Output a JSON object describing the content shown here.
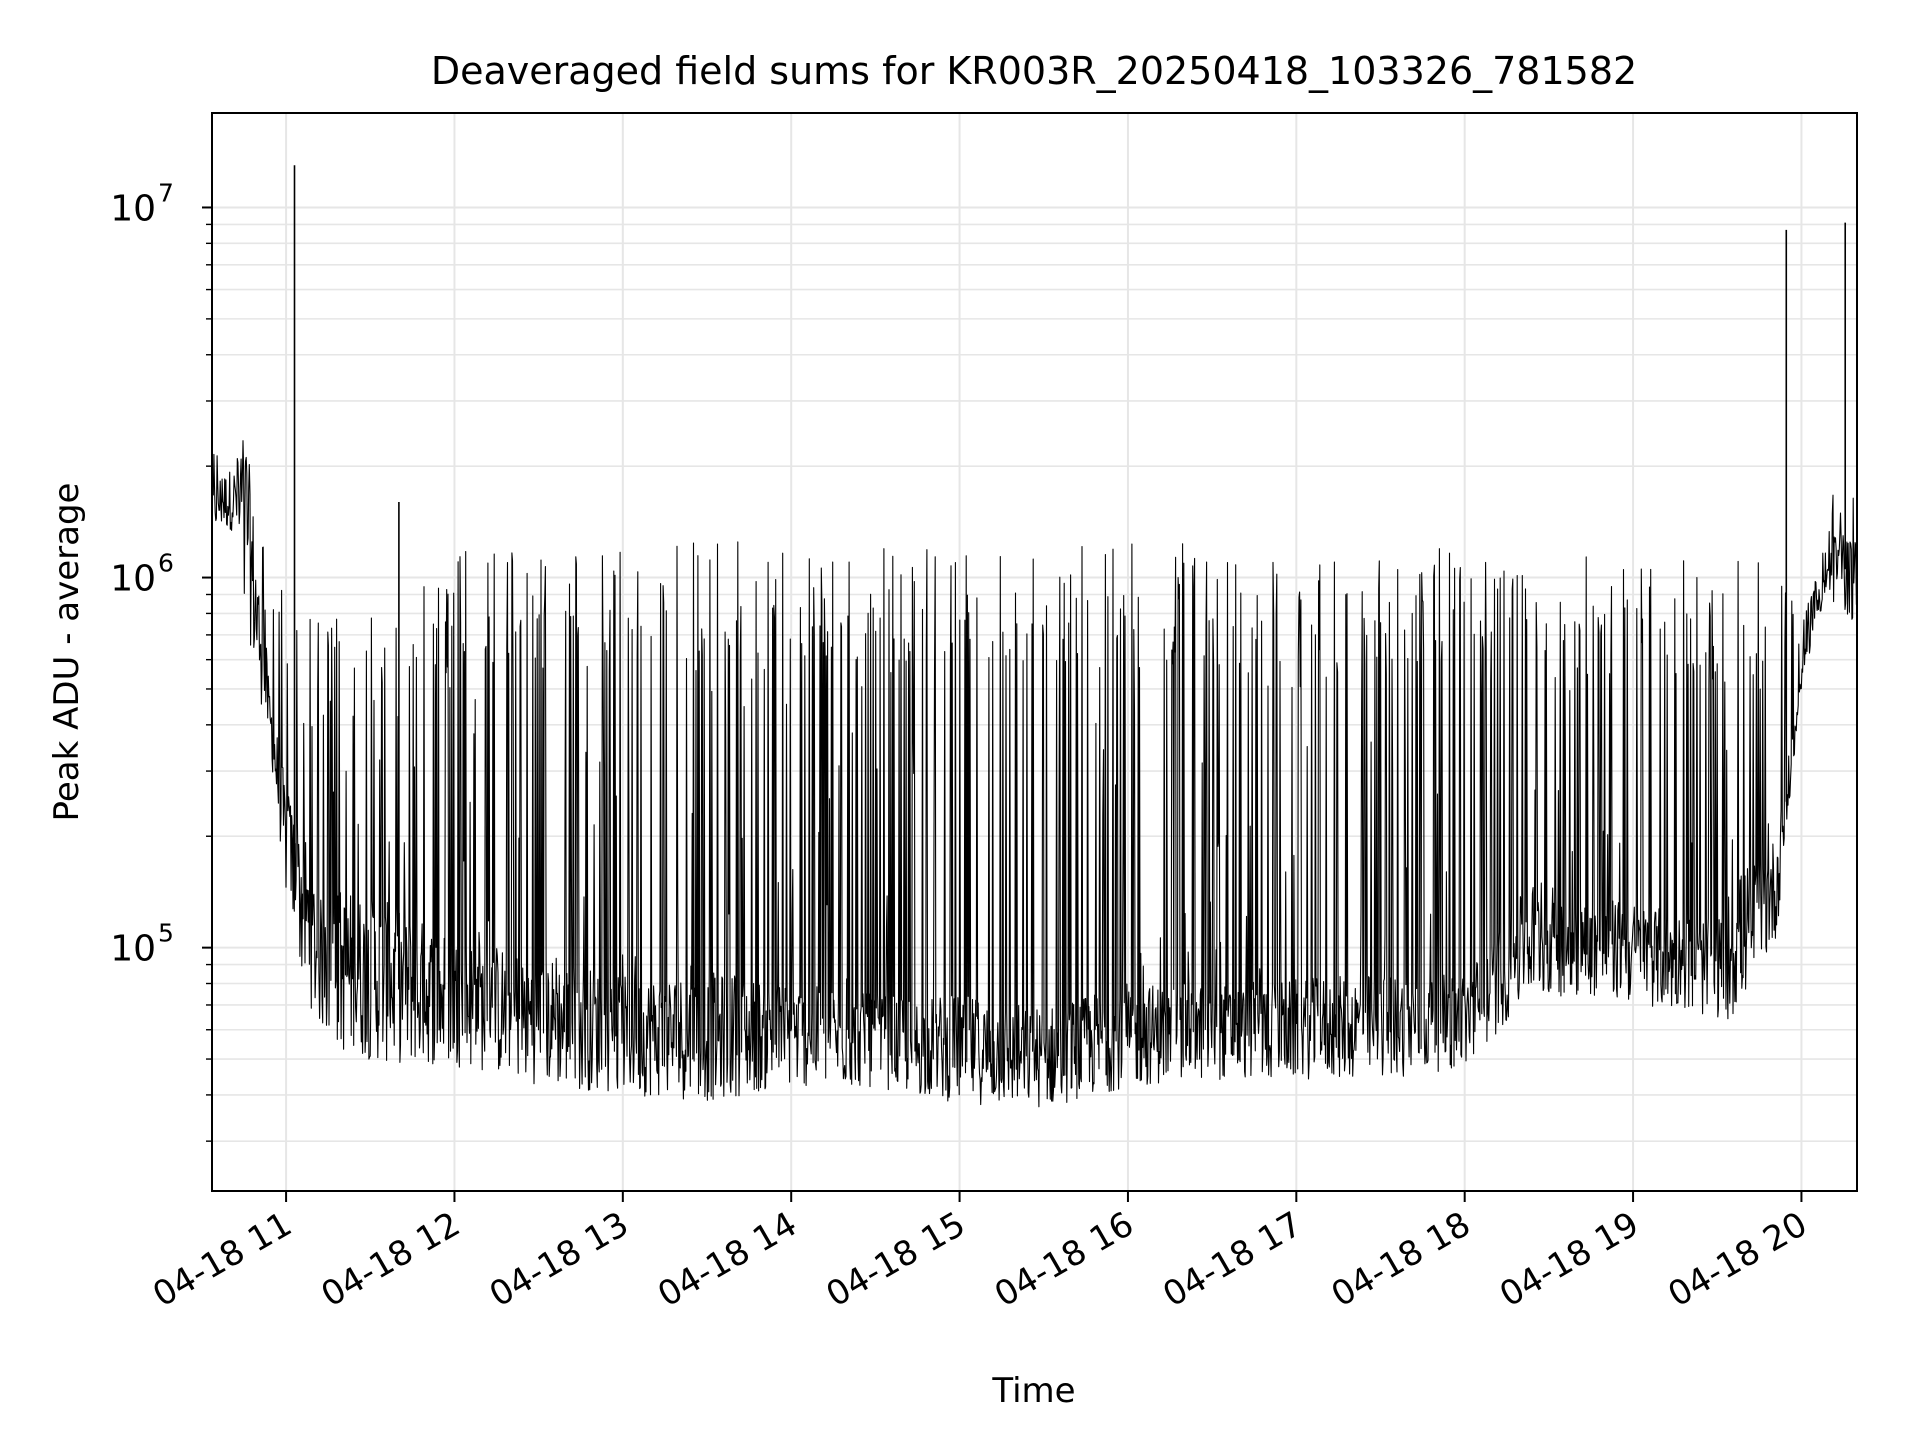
{
  "chart_data": {
    "type": "line",
    "title": "Deaveraged field sums for KR003R_20250418_103326_781582",
    "xlabel": "Time",
    "ylabel": "Peak ADU - average",
    "yscale": "log",
    "ylim": [
      22000,
      18000000
    ],
    "xlim_hours": [
      10.56,
      20.33
    ],
    "grid": true,
    "x_tick_values": [
      11,
      12,
      13,
      14,
      15,
      16,
      17,
      18,
      19,
      20
    ],
    "x_tick_labels": [
      "04-18 11",
      "04-18 12",
      "04-18 13",
      "04-18 14",
      "04-18 15",
      "04-18 16",
      "04-18 17",
      "04-18 18",
      "04-18 19",
      "04-18 20"
    ],
    "y_tick_exponents": [
      "5",
      "6",
      "7"
    ],
    "y_tick_base": "10",
    "series": [
      {
        "name": "field sums",
        "color": "#000000",
        "spikes": [
          {
            "t": 11.05,
            "v": 13000000
          },
          {
            "t": 11.67,
            "v": 1600000
          },
          {
            "t": 19.91,
            "v": 8700000
          },
          {
            "t": 20.26,
            "v": 9100000
          }
        ],
        "envelope": [
          {
            "t": 10.56,
            "low": 1300000,
            "high": 2200000
          },
          {
            "t": 10.7,
            "low": 1300000,
            "high": 2700000
          },
          {
            "t": 10.8,
            "low": 550000,
            "high": 1400000
          },
          {
            "t": 10.9,
            "low": 350000,
            "high": 1300000
          },
          {
            "t": 11.0,
            "low": 130000,
            "high": 1000000
          },
          {
            "t": 11.1,
            "low": 70000,
            "high": 900000
          },
          {
            "t": 11.3,
            "low": 48000,
            "high": 800000
          },
          {
            "t": 11.6,
            "low": 45000,
            "high": 900000
          },
          {
            "t": 12.0,
            "low": 45000,
            "high": 1200000
          },
          {
            "t": 12.5,
            "low": 40000,
            "high": 1200000
          },
          {
            "t": 13.0,
            "low": 38000,
            "high": 1200000
          },
          {
            "t": 13.5,
            "low": 36000,
            "high": 1250000
          },
          {
            "t": 14.0,
            "low": 40000,
            "high": 1250000
          },
          {
            "t": 14.5,
            "low": 40000,
            "high": 1200000
          },
          {
            "t": 15.0,
            "low": 36000,
            "high": 1200000
          },
          {
            "t": 15.5,
            "low": 35000,
            "high": 1250000
          },
          {
            "t": 16.0,
            "low": 40000,
            "high": 1250000
          },
          {
            "t": 16.5,
            "low": 42000,
            "high": 1250000
          },
          {
            "t": 17.0,
            "low": 42000,
            "high": 1100000
          },
          {
            "t": 17.5,
            "low": 42000,
            "high": 1200000
          },
          {
            "t": 18.0,
            "low": 45000,
            "high": 1200000
          },
          {
            "t": 18.4,
            "low": 70000,
            "high": 1100000
          },
          {
            "t": 18.8,
            "low": 70000,
            "high": 1150000
          },
          {
            "t": 19.2,
            "low": 65000,
            "high": 1100000
          },
          {
            "t": 19.6,
            "low": 60000,
            "high": 1150000
          },
          {
            "t": 19.85,
            "low": 100000,
            "high": 1100000
          },
          {
            "t": 20.0,
            "low": 500000,
            "high": 1300000
          },
          {
            "t": 20.15,
            "low": 900000,
            "high": 1800000
          },
          {
            "t": 20.33,
            "low": 700000,
            "high": 2200000
          }
        ],
        "median": [
          {
            "t": 10.56,
            "v": 1600000
          },
          {
            "t": 10.75,
            "v": 1700000
          },
          {
            "t": 10.85,
            "v": 650000
          },
          {
            "t": 11.0,
            "v": 200000
          },
          {
            "t": 11.2,
            "v": 95000
          },
          {
            "t": 12.0,
            "v": 75000
          },
          {
            "t": 13.0,
            "v": 60000
          },
          {
            "t": 14.0,
            "v": 60000
          },
          {
            "t": 15.0,
            "v": 55000
          },
          {
            "t": 15.5,
            "v": 52000
          },
          {
            "t": 16.0,
            "v": 60000
          },
          {
            "t": 17.0,
            "v": 62000
          },
          {
            "t": 18.0,
            "v": 65000
          },
          {
            "t": 18.4,
            "v": 110000
          },
          {
            "t": 19.0,
            "v": 100000
          },
          {
            "t": 19.5,
            "v": 90000
          },
          {
            "t": 19.85,
            "v": 150000
          },
          {
            "t": 20.05,
            "v": 800000
          },
          {
            "t": 20.2,
            "v": 1100000
          },
          {
            "t": 20.33,
            "v": 1000000
          }
        ]
      }
    ]
  }
}
